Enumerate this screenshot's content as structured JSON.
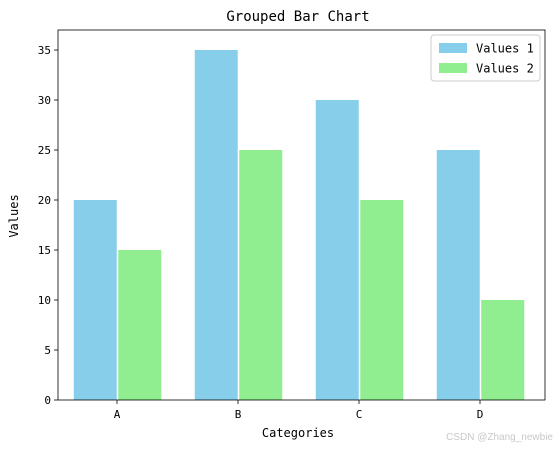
{
  "chart_data": {
    "type": "bar",
    "title": "Grouped Bar Chart",
    "xlabel": "Categories",
    "ylabel": "Values",
    "categories": [
      "A",
      "B",
      "C",
      "D"
    ],
    "series": [
      {
        "name": "Values 1",
        "values": [
          20,
          35,
          30,
          25
        ],
        "color": "#87ceeb"
      },
      {
        "name": "Values 2",
        "values": [
          15,
          25,
          20,
          10
        ],
        "color": "#90ee90"
      }
    ],
    "ylim": [
      0,
      37
    ],
    "yticks": [
      0,
      5,
      10,
      15,
      20,
      25,
      30,
      35
    ],
    "grid": false,
    "legend_position": "top-right"
  },
  "watermark": "CSDN @Zhang_newbie"
}
